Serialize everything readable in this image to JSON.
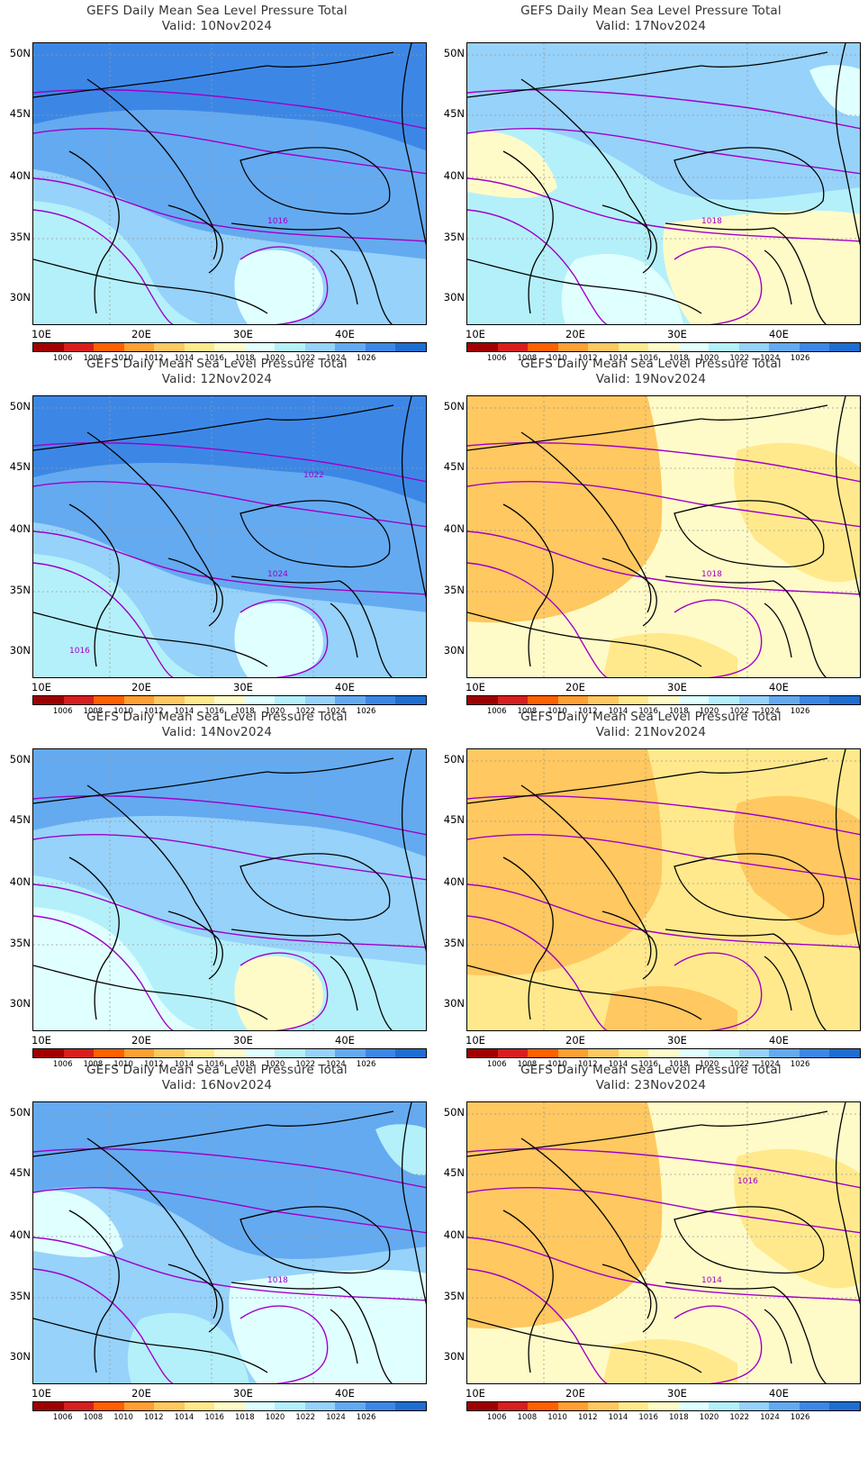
{
  "panels": [
    {
      "title": "GEFS Daily Mean Sea Level Pressure Total",
      "valid": "Valid:  10Nov2024",
      "base_level": 1022,
      "trend": "high",
      "contour_labels": [
        "1016"
      ]
    },
    {
      "title": "GEFS Daily Mean Sea Level Pressure Total",
      "valid": "Valid:  17Nov2024",
      "base_level": 1018,
      "trend": "mixed",
      "contour_labels": [
        "1018"
      ]
    },
    {
      "title": "GEFS Daily Mean Sea Level Pressure Total",
      "valid": "Valid:  12Nov2024",
      "base_level": 1022,
      "trend": "high",
      "contour_labels": [
        "1024",
        "1022",
        "1016"
      ]
    },
    {
      "title": "GEFS Daily Mean Sea Level Pressure Total",
      "valid": "Valid:  19Nov2024",
      "base_level": 1016,
      "trend": "low-west",
      "contour_labels": [
        "1018"
      ]
    },
    {
      "title": "GEFS Daily Mean Sea Level Pressure Total",
      "valid": "Valid:  14Nov2024",
      "base_level": 1020,
      "trend": "high",
      "contour_labels": []
    },
    {
      "title": "GEFS Daily Mean Sea Level Pressure Total",
      "valid": "Valid:  21Nov2024",
      "base_level": 1014,
      "trend": "low-west",
      "contour_labels": []
    },
    {
      "title": "GEFS Daily Mean Sea Level Pressure Total",
      "valid": "Valid:  16Nov2024",
      "base_level": 1020,
      "trend": "mixed",
      "contour_labels": [
        "1018"
      ]
    },
    {
      "title": "GEFS Daily Mean Sea Level Pressure Total",
      "valid": "Valid:  23Nov2024",
      "base_level": 1016,
      "trend": "low-west",
      "contour_labels": [
        "1014",
        "1016"
      ]
    }
  ],
  "lat_labels": [
    "50N",
    "45N",
    "40N",
    "35N",
    "30N"
  ],
  "lon_labels": [
    "10E",
    "20E",
    "30E",
    "40E"
  ],
  "colorbar": {
    "labels": [
      "1006",
      "1008",
      "1010",
      "1012",
      "1014",
      "1016",
      "1018",
      "1020",
      "1022",
      "1024",
      "1026"
    ],
    "colors": [
      "#a00000",
      "#d81e1e",
      "#ff6000",
      "#ffa033",
      "#ffc860",
      "#ffe98c",
      "#fffbc8",
      "#e0ffff",
      "#b4f0fa",
      "#96d2fa",
      "#64aaf0",
      "#3c87e6",
      "#1e6ed2"
    ]
  },
  "level_colors": {
    "1012": "#ffc860",
    "1014": "#ffe98c",
    "1016": "#fffbc8",
    "1018": "#e0ffff",
    "1020": "#b4f0fa",
    "1022": "#96d2fa",
    "1024": "#64aaf0",
    "1026": "#3c87e6",
    "1028": "#1e6ed2"
  },
  "contour_color": "#a000c8"
}
